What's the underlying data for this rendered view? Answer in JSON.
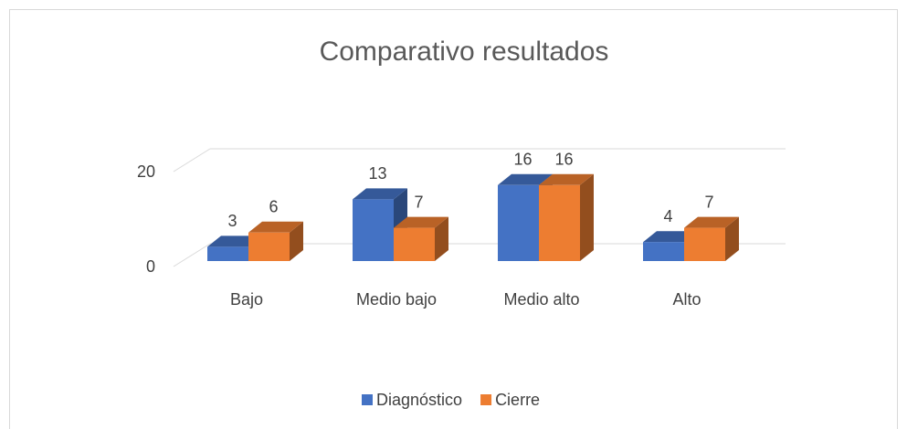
{
  "chart_data": {
    "type": "bar3d",
    "title": "Comparativo resultados",
    "categories": [
      "Bajo",
      "Medio bajo",
      "Medio alto",
      "Alto"
    ],
    "series": [
      {
        "name": "Diagnóstico",
        "color": "#4472c4",
        "values": [
          3,
          13,
          16,
          4
        ]
      },
      {
        "name": "Cierre",
        "color": "#ed7d31",
        "values": [
          6,
          7,
          16,
          7
        ]
      }
    ],
    "ylim": [
      0,
      25
    ],
    "yticks": [
      0,
      20
    ],
    "grid": true,
    "data_labels": true,
    "legend": "bottom"
  }
}
